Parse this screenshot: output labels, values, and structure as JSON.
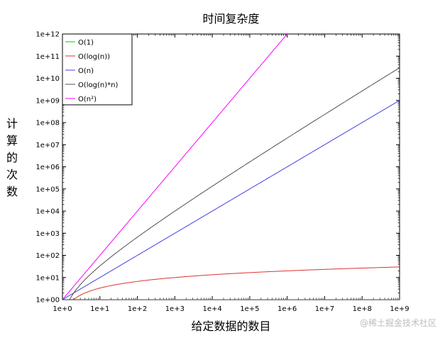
{
  "chart_data": {
    "type": "line",
    "title": "时间复杂度",
    "xlabel": "给定数据的数目",
    "ylabel": "计算的次数",
    "x_scale": "log",
    "y_scale": "log",
    "xlim": [
      1,
      1000000000
    ],
    "ylim": [
      1,
      1000000000000
    ],
    "x_ticks": [
      "1e+0",
      "1e+1",
      "1e+2",
      "1e+3",
      "1e+4",
      "1e+5",
      "1e+6",
      "1e+7",
      "1e+8",
      "1e+9"
    ],
    "y_ticks": [
      "1e+00",
      "1e+01",
      "1e+02",
      "1e+03",
      "1e+04",
      "1e+05",
      "1e+06",
      "1e+07",
      "1e+08",
      "1e+09",
      "1e+10",
      "1e+11",
      "1e+12"
    ],
    "grid": false,
    "legend_position": "top-left",
    "series": [
      {
        "name": "O(1)",
        "formula": "1",
        "color": "#00cc00"
      },
      {
        "name": "O(log(n))",
        "formula": "log2(n)",
        "color": "#e03030"
      },
      {
        "name": "O(n)",
        "formula": "n",
        "color": "#4040e0"
      },
      {
        "name": "O(log(n)*n)",
        "formula": "n*log2(n)",
        "color": "#505050"
      },
      {
        "name": "O(n²)",
        "formula": "n^2",
        "color": "#ff00ff"
      }
    ]
  },
  "watermark": "@稀土掘金技术社区"
}
